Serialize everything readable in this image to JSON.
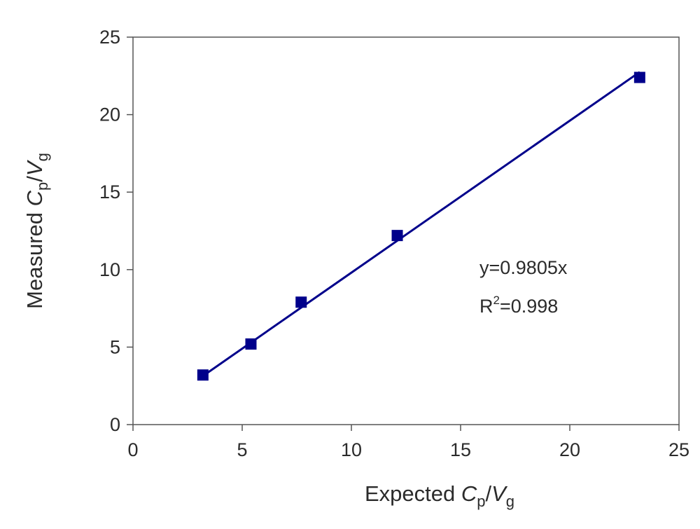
{
  "chart_data": {
    "type": "scatter",
    "xlabel": {
      "main": "Expected ",
      "var1": "C",
      "sub1": "p",
      "slash": "/",
      "var2": "V",
      "sub2": "g"
    },
    "ylabel": {
      "main": "Measured ",
      "var1": "C",
      "sub1": "p",
      "slash": "/",
      "var2": "V",
      "sub2": "g"
    },
    "xlim": [
      0,
      25
    ],
    "ylim": [
      0,
      25
    ],
    "xticks": [
      0,
      5,
      10,
      15,
      20,
      25
    ],
    "yticks": [
      0,
      5,
      10,
      15,
      20,
      25
    ],
    "xtick_labels": [
      "0",
      "5",
      "10",
      "15",
      "20",
      "25"
    ],
    "ytick_labels": [
      "0",
      "5",
      "10",
      "15",
      "20",
      "25"
    ],
    "grid": false,
    "series": [
      {
        "x": [
          3.2,
          5.4,
          7.7,
          12.1,
          23.2
        ],
        "y": [
          3.2,
          5.2,
          7.9,
          12.2,
          22.4
        ],
        "marker": "square",
        "color": "#00008B"
      }
    ],
    "fit_line": {
      "slope": 0.9805,
      "x_range": [
        3.2,
        23.2
      ],
      "color": "#00008B"
    },
    "annotations": {
      "equation": "y=0.9805x",
      "r2_prefix": "R",
      "r2_sup": "2",
      "r2_value": "=0.998"
    }
  }
}
